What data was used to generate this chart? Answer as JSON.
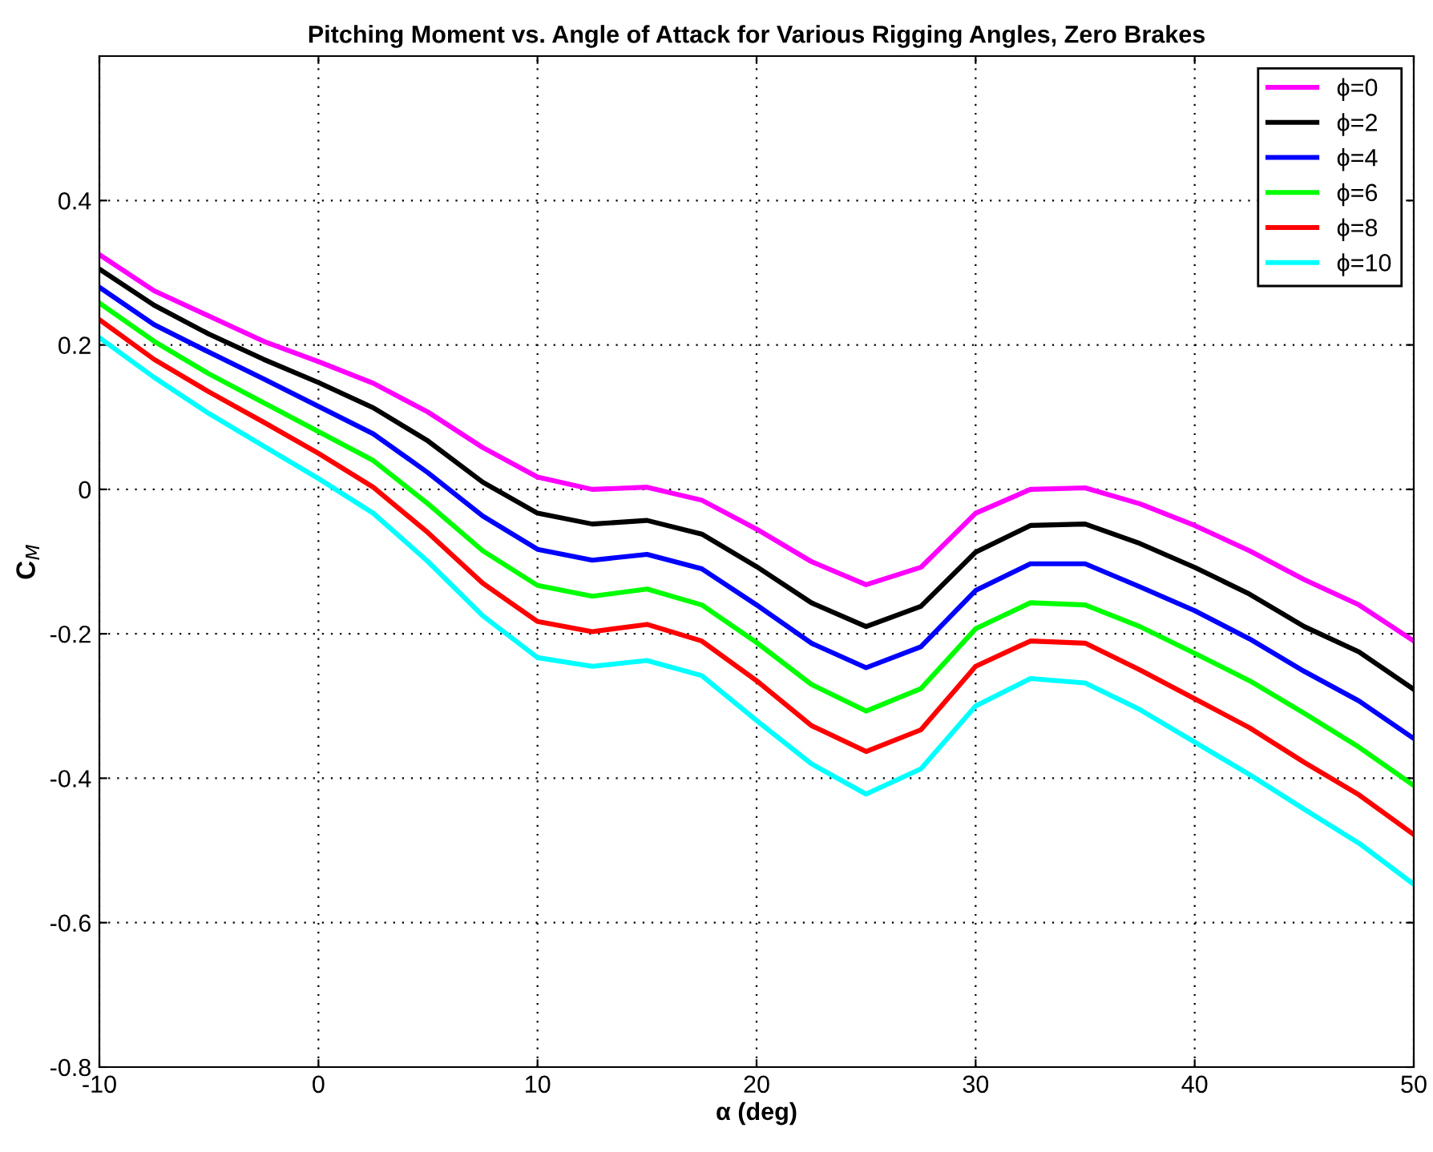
{
  "chart_data": {
    "type": "line",
    "title": "Pitching Moment vs. Angle of Attack for Various Rigging Angles, Zero Brakes",
    "xlabel": "α (deg)",
    "ylabel": "C$_{M}$",
    "x": [
      -10,
      -7.5,
      -5,
      -2.5,
      0,
      2.5,
      5,
      7.5,
      10,
      12.5,
      15,
      17.5,
      20,
      22.5,
      25,
      27.5,
      30,
      32.5,
      35,
      37.5,
      40,
      42.5,
      45,
      47.5,
      50
    ],
    "series": [
      {
        "name": "ϕ=0",
        "color": "#ff00ff",
        "values": [
          0.325,
          0.275,
          0.24,
          0.205,
          0.177,
          0.147,
          0.107,
          0.058,
          0.017,
          0.0,
          0.003,
          -0.015,
          -0.055,
          -0.1,
          -0.132,
          -0.108,
          -0.033,
          0.0,
          0.002,
          -0.02,
          -0.05,
          -0.085,
          -0.125,
          -0.16,
          -0.21
        ]
      },
      {
        "name": "ϕ=2",
        "color": "#000000",
        "values": [
          0.305,
          0.255,
          0.215,
          0.18,
          0.148,
          0.113,
          0.067,
          0.01,
          -0.033,
          -0.048,
          -0.043,
          -0.062,
          -0.107,
          -0.157,
          -0.19,
          -0.162,
          -0.087,
          -0.05,
          -0.048,
          -0.075,
          -0.108,
          -0.145,
          -0.19,
          -0.225,
          -0.277
        ]
      },
      {
        "name": "ϕ=4",
        "color": "#0000ff",
        "values": [
          0.28,
          0.228,
          0.19,
          0.153,
          0.115,
          0.077,
          0.023,
          -0.037,
          -0.083,
          -0.098,
          -0.09,
          -0.11,
          -0.16,
          -0.213,
          -0.247,
          -0.218,
          -0.14,
          -0.103,
          -0.103,
          -0.135,
          -0.168,
          -0.207,
          -0.252,
          -0.293,
          -0.345
        ]
      },
      {
        "name": "ϕ=6",
        "color": "#00ff00",
        "values": [
          0.258,
          0.205,
          0.16,
          0.12,
          0.08,
          0.04,
          -0.02,
          -0.085,
          -0.133,
          -0.148,
          -0.138,
          -0.16,
          -0.212,
          -0.27,
          -0.307,
          -0.276,
          -0.193,
          -0.157,
          -0.16,
          -0.19,
          -0.227,
          -0.265,
          -0.31,
          -0.357,
          -0.41
        ]
      },
      {
        "name": "ϕ=8",
        "color": "#ff0000",
        "values": [
          0.235,
          0.18,
          0.135,
          0.093,
          0.05,
          0.003,
          -0.06,
          -0.13,
          -0.183,
          -0.197,
          -0.187,
          -0.21,
          -0.265,
          -0.327,
          -0.363,
          -0.333,
          -0.245,
          -0.21,
          -0.213,
          -0.25,
          -0.29,
          -0.33,
          -0.378,
          -0.423,
          -0.478
        ]
      },
      {
        "name": "ϕ=10",
        "color": "#00ffff",
        "values": [
          0.21,
          0.155,
          0.105,
          0.06,
          0.015,
          -0.033,
          -0.1,
          -0.175,
          -0.233,
          -0.245,
          -0.237,
          -0.258,
          -0.32,
          -0.38,
          -0.422,
          -0.387,
          -0.3,
          -0.262,
          -0.268,
          -0.305,
          -0.35,
          -0.395,
          -0.443,
          -0.49,
          -0.547
        ]
      }
    ],
    "xlim": [
      -10,
      50
    ],
    "ylim": [
      -0.8,
      0.6
    ],
    "xticks": [
      -10,
      0,
      10,
      20,
      30,
      40,
      50
    ],
    "yticks": [
      -0.8,
      -0.6,
      -0.4,
      -0.2,
      0,
      0.2,
      0.4
    ],
    "grid": true,
    "legend": "top right",
    "line_style": "solid"
  }
}
